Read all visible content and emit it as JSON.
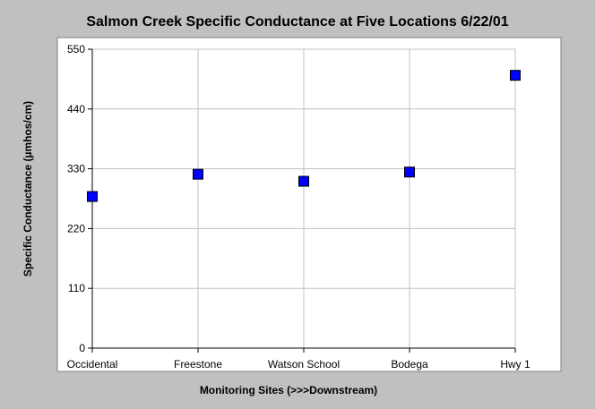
{
  "chart_data": {
    "type": "scatter",
    "title": "Salmon Creek Specific Conductance at Five Locations 6/22/01",
    "xlabel": "Monitoring Sites (>>>Downstream)",
    "ylabel": "Specific Conductance (µmhos/cm)",
    "categories": [
      "Occidental",
      "Freestone",
      "Watson School",
      "Bodega",
      "Hwy 1"
    ],
    "values": [
      279,
      320,
      307,
      324,
      502
    ],
    "ylim": [
      0,
      550
    ],
    "yticks": [
      "0",
      "110",
      "220",
      "330",
      "440",
      "550"
    ],
    "grid": true,
    "colors": {
      "marker_fill": "#0000ff",
      "marker_stroke": "#000000",
      "plot_background": "#ffffff",
      "page_background": "#c0c0c0",
      "grid": "#c0c0c0",
      "axis": "#000000"
    }
  }
}
